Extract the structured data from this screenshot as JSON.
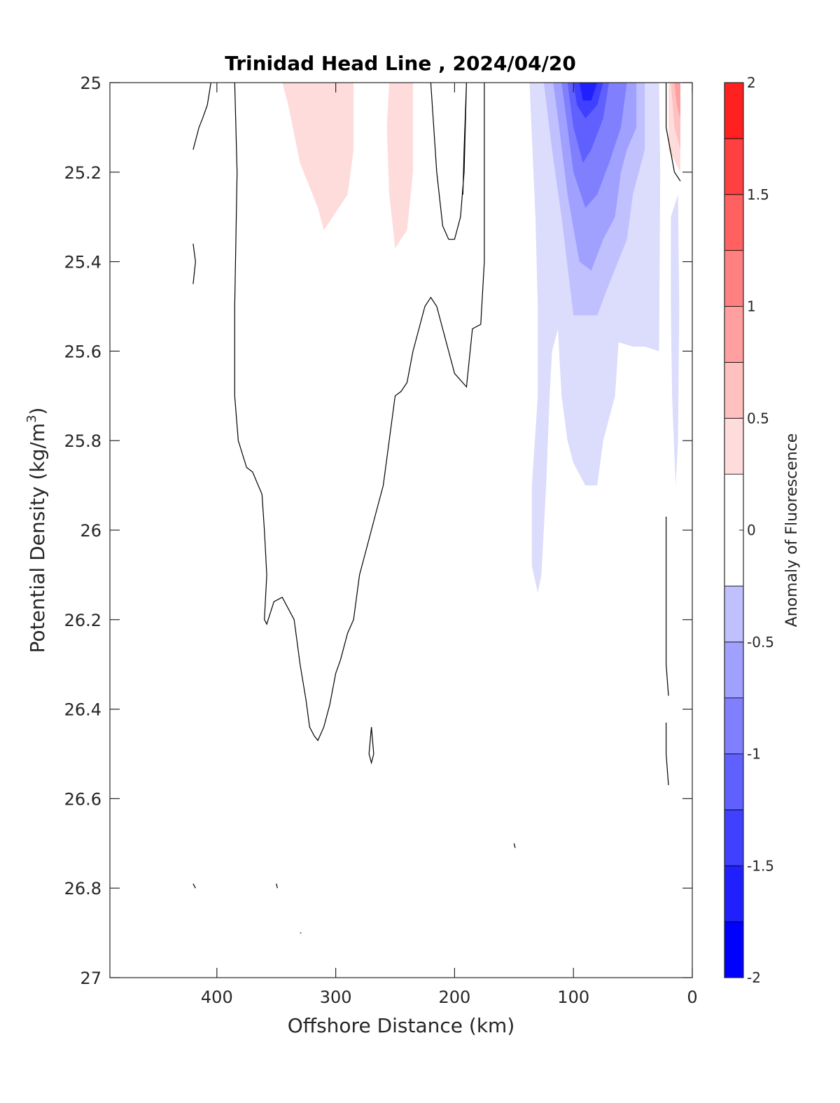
{
  "chart_data": {
    "type": "contour",
    "title": "Trinidad Head Line , 2024/04/20",
    "xlabel": "Offshore Distance (km)",
    "ylabel_main": "Potential Density (kg/m",
    "ylabel_sup": "3",
    "ylabel_close": ")",
    "xlim": [
      490,
      0
    ],
    "ylim": [
      25,
      27
    ],
    "y_reversed": true,
    "x_reversed": true,
    "xticks": [
      400,
      300,
      200,
      100,
      0
    ],
    "xtick_labels": [
      "400",
      "300",
      "200",
      "100",
      "0"
    ],
    "yticks": [
      25,
      25.2,
      25.4,
      25.6,
      25.8,
      26,
      26.2,
      26.4,
      26.6,
      26.8,
      27
    ],
    "ytick_labels": [
      "25",
      "25.2",
      "25.4",
      "25.6",
      "25.8",
      "26",
      "26.2",
      "26.4",
      "26.6",
      "26.8",
      "27"
    ],
    "colorbar": {
      "label": "Anomaly of Fluorescence",
      "range": [
        -2,
        2
      ],
      "ticks": [
        -2,
        -1.5,
        -1,
        -0.5,
        0,
        0.5,
        1,
        1.5,
        2
      ],
      "tick_labels": [
        "-2",
        "-1.5",
        "-1",
        "-0.5",
        "0",
        "0.5",
        "1",
        "1.5",
        "2"
      ],
      "levels": [
        -2,
        -1.75,
        -1.5,
        -1.25,
        -1,
        -0.75,
        -0.5,
        -0.25,
        0.25,
        0.5,
        0.75,
        1,
        1.25,
        1.5,
        1.75,
        2
      ],
      "colors": [
        "#0000ff",
        "#2020ff",
        "#4040ff",
        "#6060ff",
        "#8080ff",
        "#a0a0ff",
        "#c0c0ff",
        "#dcdcfc",
        "#ffffff",
        "#ffdcdc",
        "#ffc0c0",
        "#ff9f9f",
        "#ff8080",
        "#ff6060",
        "#ff4040",
        "#ff2020",
        "#ff0000"
      ]
    },
    "filled_regions": [
      {
        "level": 0.25,
        "color": "#ffdcdc",
        "points": [
          [
            345,
            25
          ],
          [
            285,
            25
          ],
          [
            285,
            25.15
          ],
          [
            290,
            25.25
          ],
          [
            300,
            25.29
          ],
          [
            310,
            25.33
          ],
          [
            315,
            25.28
          ],
          [
            330,
            25.18
          ],
          [
            340,
            25.05
          ],
          [
            345,
            25
          ]
        ]
      },
      {
        "level": 0.25,
        "color": "#ffdcdc",
        "points": [
          [
            255,
            25
          ],
          [
            235,
            25
          ],
          [
            235,
            25.2
          ],
          [
            240,
            25.33
          ],
          [
            250,
            25.37
          ],
          [
            255,
            25.25
          ],
          [
            257,
            25.1
          ],
          [
            255,
            25
          ]
        ]
      },
      {
        "level": 0.25,
        "color": "#ffdcdc",
        "points": [
          [
            20,
            25
          ],
          [
            10,
            25
          ],
          [
            10,
            25.2
          ],
          [
            20,
            25.15
          ],
          [
            20,
            25
          ]
        ]
      },
      {
        "level": 0.5,
        "color": "#ffc0c0",
        "points": [
          [
            18,
            25
          ],
          [
            10,
            25
          ],
          [
            10,
            25.15
          ],
          [
            15,
            25.1
          ],
          [
            18,
            25
          ]
        ]
      },
      {
        "level": 0.75,
        "color": "#ff9f9f",
        "points": [
          [
            15,
            25
          ],
          [
            10,
            25
          ],
          [
            10,
            25.08
          ],
          [
            13,
            25.05
          ],
          [
            15,
            25
          ]
        ]
      },
      {
        "level": -0.25,
        "color": "#dcdcfc",
        "points": [
          [
            137,
            25
          ],
          [
            28,
            25
          ],
          [
            27,
            25.2
          ],
          [
            28,
            25.6
          ],
          [
            40,
            25.59
          ],
          [
            50,
            25.59
          ],
          [
            62,
            25.58
          ],
          [
            65,
            25.7
          ],
          [
            75,
            25.8
          ],
          [
            80,
            25.9
          ],
          [
            90,
            25.9
          ],
          [
            100,
            25.85
          ],
          [
            105,
            25.8
          ],
          [
            110,
            25.7
          ],
          [
            113,
            25.55
          ],
          [
            118,
            25.6
          ],
          [
            120,
            25.7
          ],
          [
            123,
            25.9
          ],
          [
            125,
            26
          ],
          [
            127,
            26.1
          ],
          [
            130,
            26.14
          ],
          [
            135,
            26.08
          ],
          [
            135,
            25.9
          ],
          [
            130,
            25.7
          ],
          [
            130,
            25.5
          ],
          [
            132,
            25.3
          ],
          [
            137,
            25
          ]
        ]
      },
      {
        "level": -0.25,
        "color": "#dcdcfc",
        "points": [
          [
            12,
            25.25
          ],
          [
            18,
            25.3
          ],
          [
            18,
            25.5
          ],
          [
            17,
            25.7
          ],
          [
            14,
            25.9
          ],
          [
            12,
            25.8
          ],
          [
            11,
            25.5
          ],
          [
            12,
            25.25
          ]
        ]
      },
      {
        "level": -0.5,
        "color": "#c0c0ff",
        "points": [
          [
            125,
            25
          ],
          [
            40,
            25
          ],
          [
            40,
            25.15
          ],
          [
            45,
            25.2
          ],
          [
            50,
            25.25
          ],
          [
            55,
            25.35
          ],
          [
            70,
            25.45
          ],
          [
            80,
            25.52
          ],
          [
            100,
            25.52
          ],
          [
            110,
            25.3
          ],
          [
            118,
            25.15
          ],
          [
            125,
            25
          ]
        ]
      },
      {
        "level": -0.75,
        "color": "#a0a0ff",
        "points": [
          [
            117,
            25
          ],
          [
            47,
            25
          ],
          [
            47,
            25.1
          ],
          [
            55,
            25.15
          ],
          [
            60,
            25.2
          ],
          [
            65,
            25.3
          ],
          [
            75,
            25.35
          ],
          [
            85,
            25.42
          ],
          [
            95,
            25.4
          ],
          [
            105,
            25.25
          ],
          [
            112,
            25.1
          ],
          [
            117,
            25
          ]
        ]
      },
      {
        "level": -1,
        "color": "#8080ff",
        "points": [
          [
            110,
            25
          ],
          [
            55,
            25
          ],
          [
            60,
            25.1
          ],
          [
            70,
            25.18
          ],
          [
            80,
            25.25
          ],
          [
            90,
            25.28
          ],
          [
            100,
            25.2
          ],
          [
            105,
            25.1
          ],
          [
            110,
            25
          ]
        ]
      },
      {
        "level": -1.25,
        "color": "#6060ff",
        "points": [
          [
            105,
            25
          ],
          [
            70,
            25
          ],
          [
            75,
            25.08
          ],
          [
            85,
            25.15
          ],
          [
            92,
            25.18
          ],
          [
            100,
            25.1
          ],
          [
            105,
            25
          ]
        ]
      },
      {
        "level": -1.5,
        "color": "#4040ff",
        "points": [
          [
            100,
            25
          ],
          [
            75,
            25
          ],
          [
            80,
            25.05
          ],
          [
            90,
            25.08
          ],
          [
            97,
            25.05
          ],
          [
            100,
            25
          ]
        ]
      },
      {
        "level": -1.75,
        "color": "#2020ff",
        "points": [
          [
            95,
            25
          ],
          [
            80,
            25
          ],
          [
            85,
            25.04
          ],
          [
            92,
            25.04
          ],
          [
            95,
            25
          ]
        ]
      }
    ],
    "contour_lines": [
      [
        [
          420,
          25.15
        ],
        [
          415,
          25.1
        ],
        [
          412,
          25.08
        ],
        [
          408,
          25.05
        ],
        [
          405,
          25
        ]
      ],
      [
        [
          420,
          25.36
        ],
        [
          418,
          25.4
        ],
        [
          420,
          25.45
        ]
      ],
      [
        [
          385,
          25
        ],
        [
          383,
          25.2
        ],
        [
          385,
          25.5
        ],
        [
          385,
          25.7
        ],
        [
          382,
          25.8
        ],
        [
          375,
          25.86
        ],
        [
          370,
          25.87
        ],
        [
          362,
          25.92
        ],
        [
          360,
          26
        ],
        [
          358,
          26.1
        ],
        [
          360,
          26.2
        ],
        [
          358,
          26.21
        ],
        [
          352,
          26.16
        ],
        [
          345,
          26.15
        ],
        [
          335,
          26.2
        ],
        [
          330,
          26.3
        ],
        [
          325,
          26.38
        ],
        [
          322,
          26.44
        ],
        [
          318,
          26.46
        ],
        [
          315,
          26.47
        ],
        [
          310,
          26.44
        ],
        [
          305,
          26.39
        ],
        [
          300,
          26.32
        ],
        [
          296,
          26.29
        ],
        [
          290,
          26.23
        ],
        [
          285,
          26.2
        ],
        [
          280,
          26.1
        ],
        [
          275,
          26.05
        ],
        [
          265,
          25.95
        ],
        [
          260,
          25.9
        ],
        [
          255,
          25.8
        ],
        [
          250,
          25.7
        ],
        [
          245,
          25.69
        ],
        [
          240,
          25.67
        ],
        [
          235,
          25.6
        ],
        [
          230,
          25.55
        ],
        [
          225,
          25.5
        ],
        [
          220,
          25.48
        ],
        [
          215,
          25.5
        ],
        [
          210,
          25.55
        ],
        [
          205,
          25.6
        ],
        [
          200,
          25.65
        ],
        [
          190,
          25.68
        ],
        [
          185,
          25.55
        ],
        [
          178,
          25.54
        ],
        [
          175,
          25.4
        ],
        [
          175,
          25
        ]
      ],
      [
        [
          220,
          25
        ],
        [
          215,
          25.2
        ],
        [
          210,
          25.32
        ],
        [
          205,
          25.35
        ],
        [
          200,
          25.35
        ],
        [
          195,
          25.3
        ],
        [
          192,
          25.2
        ],
        [
          190,
          25
        ],
        [
          192,
          25.15
        ],
        [
          193,
          25.25
        ]
      ],
      [
        [
          22,
          25
        ],
        [
          22,
          25.1
        ],
        [
          15,
          25.2
        ],
        [
          10,
          25.22
        ]
      ],
      [
        [
          22,
          25.97
        ],
        [
          22,
          26.1
        ],
        [
          22,
          26.3
        ],
        [
          20,
          26.37
        ]
      ],
      [
        [
          22,
          26.43
        ],
        [
          22,
          26.5
        ],
        [
          20,
          26.57
        ]
      ],
      [
        [
          270,
          26.44
        ],
        [
          268,
          26.5
        ],
        [
          270,
          26.52
        ],
        [
          272,
          26.5
        ],
        [
          270,
          26.44
        ]
      ],
      [
        [
          150,
          26.7
        ],
        [
          149,
          26.71
        ]
      ],
      [
        [
          420,
          26.79
        ],
        [
          418,
          26.8
        ]
      ],
      [
        [
          350,
          26.79
        ],
        [
          349,
          26.8
        ]
      ],
      [
        [
          330,
          26.9
        ],
        [
          329,
          26.9
        ]
      ]
    ]
  }
}
